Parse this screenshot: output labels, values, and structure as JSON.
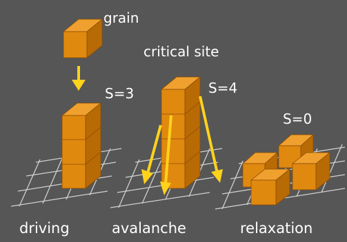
{
  "colors": {
    "background": "#565656",
    "grid": "#e6e6e6",
    "cube_front": "#e0890f",
    "cube_side": "#b86a05",
    "cube_top": "#f0a02e",
    "cube_edge": "#8a4d05",
    "arrow": "#ffd21c",
    "text": "#ffffff"
  },
  "labels": {
    "grain": "grain",
    "critical_site": "critical site",
    "s_driving": "S=3",
    "s_avalanche": "S=4",
    "s_relaxation": "S=0"
  },
  "stages": [
    {
      "label": "driving",
      "stack_height": 3
    },
    {
      "label": "avalanche",
      "stack_height": 4
    },
    {
      "label": "relaxation",
      "stack_height": 0
    }
  ]
}
